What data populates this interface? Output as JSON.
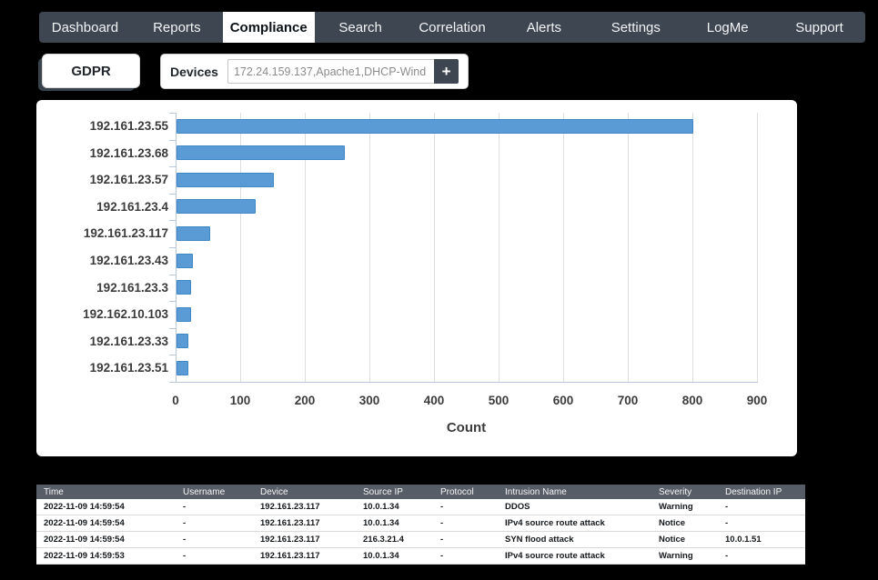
{
  "nav": {
    "tabs": [
      {
        "label": "Dashboard",
        "active": false
      },
      {
        "label": "Reports",
        "active": false
      },
      {
        "label": "Compliance",
        "active": true
      },
      {
        "label": "Search",
        "active": false
      },
      {
        "label": "Correlation",
        "active": false
      },
      {
        "label": "Alerts",
        "active": false
      },
      {
        "label": "Settings",
        "active": false
      },
      {
        "label": "LogMe",
        "active": false
      },
      {
        "label": "Support",
        "active": false
      }
    ],
    "bg_color": "#3d4651",
    "active_bg_color": "#ffffff"
  },
  "filters": {
    "gdpr_label": "GDPR",
    "devices_label": "Devices",
    "devices_value": "172.24.159.137,Apache1,DHCP-Wind ...",
    "add_button_label": "+"
  },
  "chart_data": {
    "type": "bar",
    "orientation": "horizontal",
    "title": "",
    "categories": [
      "192.161.23.55",
      "192.161.23.68",
      "192.161.23.57",
      "192.161.23.4",
      "192.161.23.117",
      "192.161.23.43",
      "192.161.23.3",
      "192.162.10.103",
      "192.161.23.33",
      "192.161.23.51"
    ],
    "values": [
      800,
      260,
      150,
      122,
      52,
      25,
      22,
      22,
      19,
      19
    ],
    "xlabel": "Count",
    "ylabel": "",
    "x_ticks": [
      0,
      100,
      200,
      300,
      400,
      500,
      600,
      700,
      800,
      900
    ],
    "xlim": [
      0,
      900
    ],
    "grid": true,
    "legend": false,
    "bar_color": "#5b9bd5",
    "bar_border_color": "#3f87c5"
  },
  "table": {
    "columns": [
      "Time",
      "Username",
      "Device",
      "Source IP",
      "Protocol",
      "Intrusion Name",
      "Severity",
      "Destination IP"
    ],
    "rows": [
      [
        "2022-11-09 14:59:54",
        "-",
        "192.161.23.117",
        "10.0.1.34",
        "-",
        "DDOS",
        "Warning",
        "-"
      ],
      [
        "2022-11-09 14:59:54",
        "-",
        "192.161.23.117",
        "10.0.1.34",
        "-",
        "IPv4 source route attack",
        "Notice",
        "-"
      ],
      [
        "2022-11-09 14:59:54",
        "-",
        "192.161.23.117",
        "216.3.21.4",
        "-",
        "SYN flood attack",
        "Notice",
        "10.0.1.51"
      ],
      [
        "2022-11-09 14:59:53",
        "-",
        "192.161.23.117",
        "10.0.1.34",
        "-",
        "IPv4 source route attack",
        "Warning",
        "-"
      ]
    ],
    "header_bg_color": "#565d66"
  }
}
